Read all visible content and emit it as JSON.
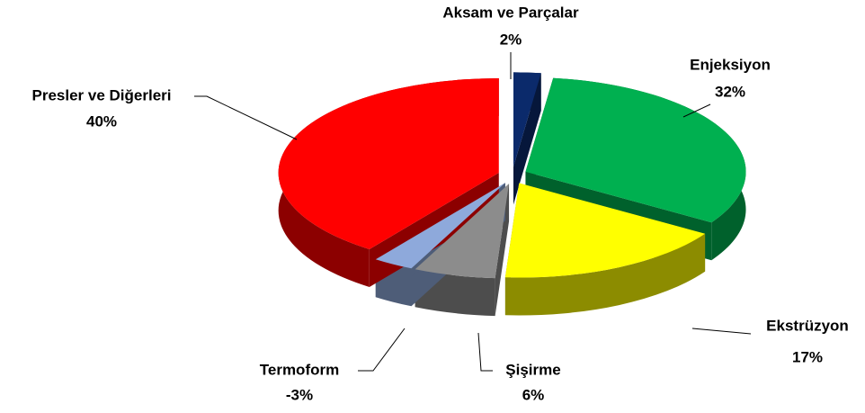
{
  "chart_data": {
    "type": "pie",
    "categories": [
      "Aksam ve Parçalar",
      "Enjeksiyon",
      "Ekstrüzyon",
      "Şişirme",
      "Termoform",
      "Presler ve Diğerleri"
    ],
    "values": [
      2,
      32,
      17,
      6,
      -3,
      40
    ],
    "value_labels": [
      "2%",
      "32%",
      "17%",
      "6%",
      "-3%",
      "40%"
    ],
    "colors": [
      "#0b2a6b",
      "#00b050",
      "#ffff00",
      "#8c8c8c",
      "#8ea9db",
      "#ff0000"
    ]
  }
}
